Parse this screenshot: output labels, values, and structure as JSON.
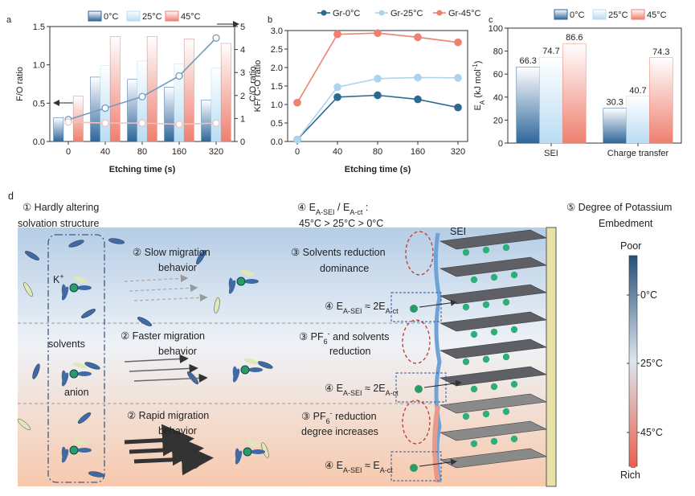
{
  "chart_data": [
    {
      "type": "bar",
      "panel": "a",
      "xlabel": "Etching time (s)",
      "ylabel": "F/O ratio",
      "y2label": "C/O ratio",
      "categories": [
        "0",
        "40",
        "80",
        "160",
        "320"
      ],
      "series": [
        {
          "name": "0°C",
          "color": "#2f679a",
          "values": [
            0.31,
            0.84,
            0.81,
            0.71,
            0.54
          ]
        },
        {
          "name": "25°C",
          "color": "#b9dcf3",
          "values": [
            null,
            0.99,
            1.05,
            1.01,
            0.96
          ]
        },
        {
          "name": "45°C",
          "color": "#ee7f6f",
          "values": [
            0.59,
            1.37,
            1.37,
            1.34,
            1.28
          ]
        },
        {
          "type": "line",
          "axis": "y2",
          "color": "#6f9cc0",
          "values": [
            0.95,
            1.45,
            1.95,
            2.85,
            4.5
          ]
        },
        {
          "type": "line",
          "axis": "y2",
          "color": "#f2c2bb",
          "values": [
            0.85,
            0.8,
            0.8,
            0.75,
            0.8
          ]
        }
      ],
      "ylim": [
        0,
        1.5
      ],
      "yticks": [
        {
          "value": 0,
          "label": "0.0"
        },
        {
          "value": 0.5,
          "label": "0.5"
        },
        {
          "value": 1,
          "label": "1.0"
        },
        {
          "value": 1.5,
          "label": "1.5"
        }
      ],
      "y2lim": [
        0,
        5
      ],
      "y2ticks": [
        0,
        1,
        2,
        3,
        4,
        5
      ],
      "legend": "top"
    },
    {
      "type": "line",
      "panel": "b",
      "xlabel": "Etching time (s)",
      "ylabel": "KF/ C-O ratio",
      "categories": [
        "0",
        "40",
        "80",
        "160",
        "320"
      ],
      "series": [
        {
          "name": "Gr-0°C",
          "color": "#2c6a93",
          "values": [
            0.05,
            1.2,
            1.25,
            1.14,
            0.92
          ]
        },
        {
          "name": "Gr-25°C",
          "color": "#aed3ec",
          "values": [
            0.05,
            1.47,
            1.7,
            1.73,
            1.72
          ]
        },
        {
          "name": "Gr-45°C",
          "color": "#ef8170",
          "values": [
            1.05,
            2.9,
            2.93,
            2.82,
            2.68
          ]
        }
      ],
      "ylim": [
        0,
        3
      ],
      "yticks": [
        {
          "value": 0,
          "label": "0.0"
        },
        {
          "value": 0.5,
          "label": "0.5"
        },
        {
          "value": 1,
          "label": "1.0"
        },
        {
          "value": 1.5,
          "label": "1.5"
        },
        {
          "value": 2,
          "label": "2.0"
        },
        {
          "value": 2.5,
          "label": "2.5"
        },
        {
          "value": 3,
          "label": "3.0"
        }
      ],
      "legend": "top"
    },
    {
      "type": "bar",
      "panel": "c",
      "ylabel": [
        {
          "text": "E"
        },
        {
          "text": "A",
          "sub": true
        },
        {
          "text": " (kJ mol"
        },
        {
          "text": "-1",
          "sup": true
        },
        {
          "text": ")"
        }
      ],
      "categories": [
        "SEI",
        "Charge transfer"
      ],
      "series": [
        {
          "name": "0°C",
          "color": "#2f679a",
          "values": [
            66.3,
            30.3
          ]
        },
        {
          "name": "25°C",
          "color": "#b9dcf3",
          "values": [
            74.7,
            40.7
          ]
        },
        {
          "name": "45°C",
          "color": "#ee7f6f",
          "values": [
            86.6,
            74.3
          ]
        }
      ],
      "ylim": [
        0,
        100
      ],
      "yticks": [
        0,
        20,
        40,
        60,
        80,
        100
      ],
      "legend": "top",
      "data_labels": true
    }
  ],
  "diagram": {
    "panel": "d",
    "labels": [
      "① Hardly altering",
      "solvation structure",
      [
        {
          "text": "④ E"
        },
        {
          "text": "A-SEI",
          "sub": true
        },
        {
          "text": " / E"
        },
        {
          "text": "A-ct",
          "sub": true
        },
        {
          "text": " :"
        }
      ],
      "45°C > 25°C > 0°C",
      "⑤ Degree of Potassium",
      "Embedment",
      "SEI",
      "② Slow migration",
      "behavior",
      "③ Solvents reduction",
      "dominance",
      [
        {
          "text": "④ E"
        },
        {
          "text": "A-SEI",
          "sub": true
        },
        {
          "text": " ≈ 2E"
        },
        {
          "text": "A-ct",
          "sub": true
        }
      ],
      "② Faster migration",
      "behavior",
      [
        {
          "text": "③ PF"
        },
        {
          "text": "6",
          "sub": true
        },
        {
          "text": "-",
          "sup": true
        },
        {
          "text": " and solvents"
        }
      ],
      "reduction",
      [
        {
          "text": "④ E"
        },
        {
          "text": "A-SEI",
          "sub": true
        },
        {
          "text": " ≈ 2E"
        },
        {
          "text": "A-ct",
          "sub": true
        }
      ],
      "② Rapid migration",
      "behavior",
      [
        {
          "text": "③ PF"
        },
        {
          "text": "6",
          "sub": true
        },
        {
          "text": "-",
          "sup": true
        },
        {
          "text": " reduction"
        }
      ],
      "degree increases",
      [
        {
          "text": "④ E"
        },
        {
          "text": "A-SEI",
          "sub": true
        },
        {
          "text": " ≈ E"
        },
        {
          "text": "A-ct",
          "sub": true
        }
      ],
      [
        {
          "text": "K"
        },
        {
          "text": "+",
          "sup": true
        }
      ],
      "solvents",
      "anion",
      "Poor",
      "0°C",
      "25°C",
      "45°C",
      "Rich"
    ]
  }
}
